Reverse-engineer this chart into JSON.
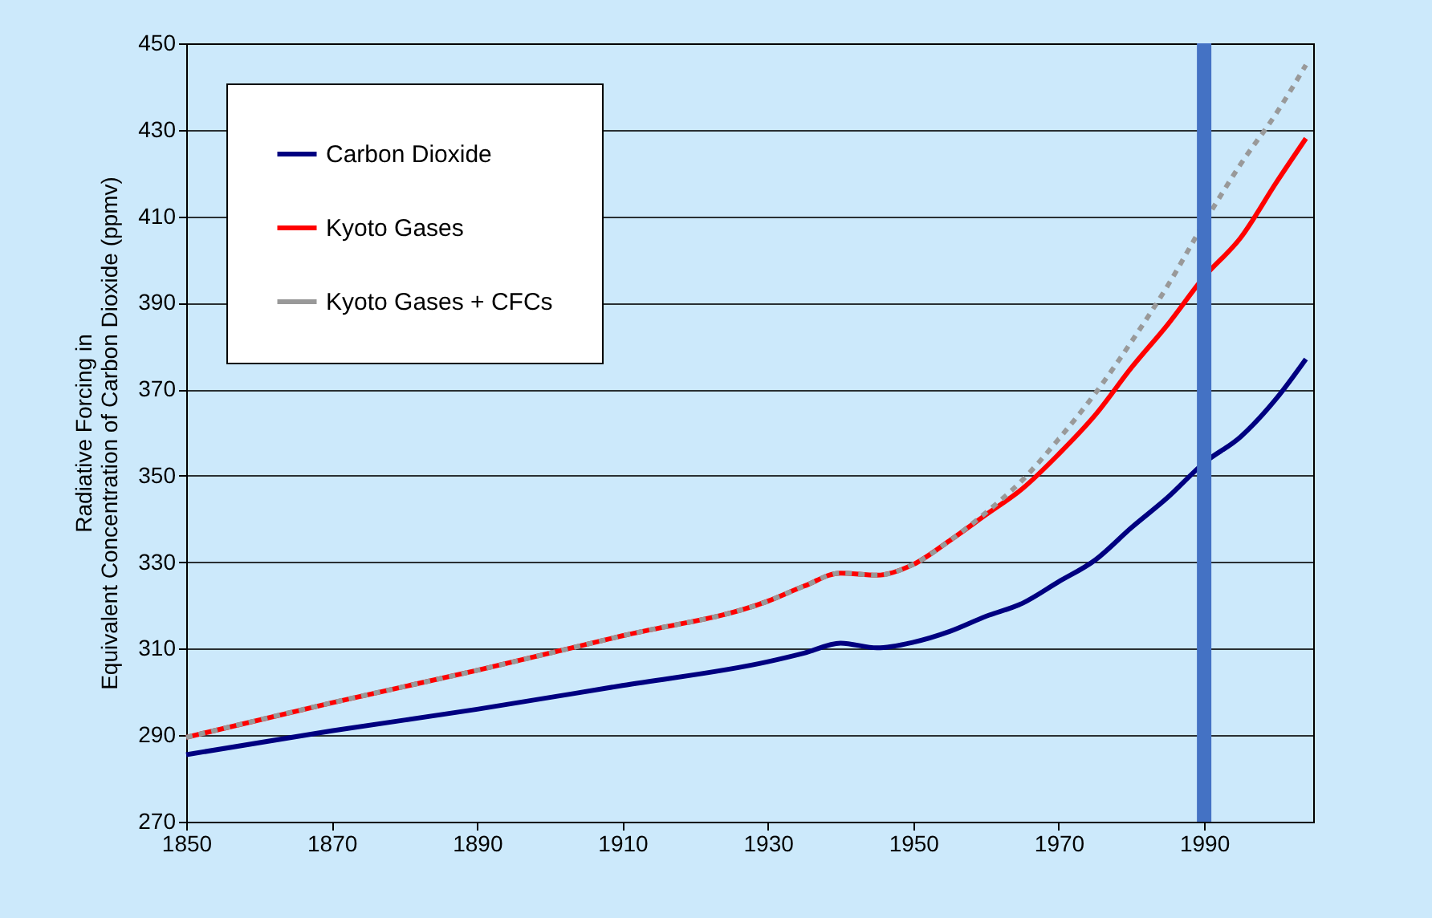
{
  "chart_data": {
    "type": "line",
    "ylabel": "Radiative Forcing in\nEquivalent Concentration of Carbon Dioxide (ppmv)",
    "x": [
      1850,
      1870,
      1890,
      1910,
      1930,
      1935,
      1940,
      1945,
      1950,
      1955,
      1960,
      1965,
      1970,
      1975,
      1980,
      1985,
      1990,
      1995,
      2000,
      2004
    ],
    "series": [
      {
        "name": "Carbon Dioxide",
        "color": "#000080",
        "line_style": "solid",
        "values": [
          285.5,
          291,
          296,
          301.5,
          307,
          309,
          311.3,
          310.2,
          311.5,
          314,
          317.5,
          320.5,
          325.5,
          330.5,
          338,
          345,
          353,
          359,
          368,
          377
        ]
      },
      {
        "name": "Kyoto Gases",
        "color": "#ff0000",
        "line_style": "solid",
        "values": [
          289.5,
          297.5,
          305,
          313,
          321,
          324.5,
          327.5,
          327,
          329.5,
          335,
          341,
          347,
          355,
          364,
          375,
          385,
          396,
          405,
          418,
          428
        ]
      },
      {
        "name": "Kyoto Gases + CFCs",
        "color": "#999999",
        "line_style": "dashed",
        "values": [
          289.5,
          297.5,
          305,
          313,
          321,
          324.5,
          327.5,
          327,
          329.5,
          335,
          341.5,
          349,
          358.5,
          369,
          381,
          394,
          408.5,
          422,
          434,
          445
        ]
      }
    ],
    "xlim": [
      1850,
      2005
    ],
    "xticks": [
      1850,
      1870,
      1890,
      1910,
      1930,
      1950,
      1970,
      1990
    ],
    "ylim": [
      270,
      450
    ],
    "yticks": [
      270,
      290,
      310,
      330,
      350,
      370,
      390,
      410,
      430,
      450
    ],
    "ref_lines": [
      {
        "axis": "x",
        "value": 1990,
        "color": "#4472c4"
      }
    ],
    "grid": "y",
    "legend": "top left"
  }
}
